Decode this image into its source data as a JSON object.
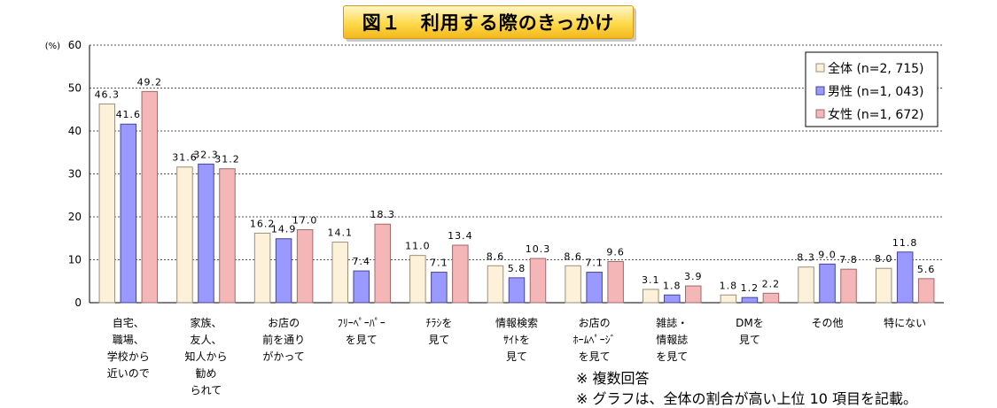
{
  "title": "図１　利用する際のきっかけ",
  "notes": [
    "※ 複数回答",
    "※ グラフは、全体の割合が高い上位 10 項目を記載。"
  ],
  "chart_data": {
    "type": "bar",
    "y_unit": "(%)",
    "ylim": [
      0,
      60
    ],
    "yticks": [
      0,
      10,
      20,
      30,
      40,
      50,
      60
    ],
    "grid": true,
    "legend_position": "top-right",
    "categories": [
      [
        "自宅、",
        "職場、",
        "学校から",
        "近いので"
      ],
      [
        "家族、",
        "友人、",
        "知人から",
        "勧め",
        "られて"
      ],
      [
        "お店の",
        "前を通り",
        "がかって"
      ],
      [
        "ﾌﾘｰﾍﾟｰﾊﾟｰ",
        "を見て"
      ],
      [
        "ﾁﾗｼを",
        "見て"
      ],
      [
        "情報検索",
        "ｻｲﾄを",
        "見て"
      ],
      [
        "お店の",
        "ﾎｰﾑﾍﾟｰｼﾞ",
        "を見て"
      ],
      [
        "雑誌・",
        "情報誌",
        "を見て"
      ],
      [
        "DMを",
        "見て"
      ],
      [
        "その他"
      ],
      [
        "特にない"
      ]
    ],
    "series": [
      {
        "name": "全体 (n=2, 715)",
        "color": "#fdf2d9",
        "stroke": "#9a8f78",
        "values": [
          46.3,
          31.6,
          16.2,
          14.1,
          11.0,
          8.6,
          8.6,
          3.1,
          1.8,
          8.3,
          8.0
        ],
        "labels": [
          "46.3",
          "31.6",
          "16.2",
          "14.1",
          "11.0",
          "8.6",
          "8.6",
          "3.1",
          "1.8",
          "8.3",
          "8.0"
        ]
      },
      {
        "name": "男性 (n=1, 043)",
        "color": "#9999ff",
        "stroke": "#44449a",
        "values": [
          41.6,
          32.3,
          14.9,
          7.4,
          7.1,
          5.8,
          7.1,
          1.8,
          1.2,
          9.0,
          11.8
        ],
        "labels": [
          "41.6",
          "32.3",
          "14.9",
          "7.4",
          "7.1",
          "5.8",
          "7.1",
          "1.8",
          "1.2",
          "9.0",
          "11.8"
        ]
      },
      {
        "name": "女性 (n=1, 672)",
        "color": "#f4b6b6",
        "stroke": "#a06a6a",
        "values": [
          49.2,
          31.2,
          17.0,
          18.3,
          13.4,
          10.3,
          9.6,
          3.9,
          2.2,
          7.8,
          5.6
        ],
        "labels": [
          "49.2",
          "31.2",
          "17.0",
          "18.3",
          "13.4",
          "10.3",
          "9.6",
          "3.9",
          "2.2",
          "7.8",
          "5.6"
        ]
      }
    ]
  }
}
